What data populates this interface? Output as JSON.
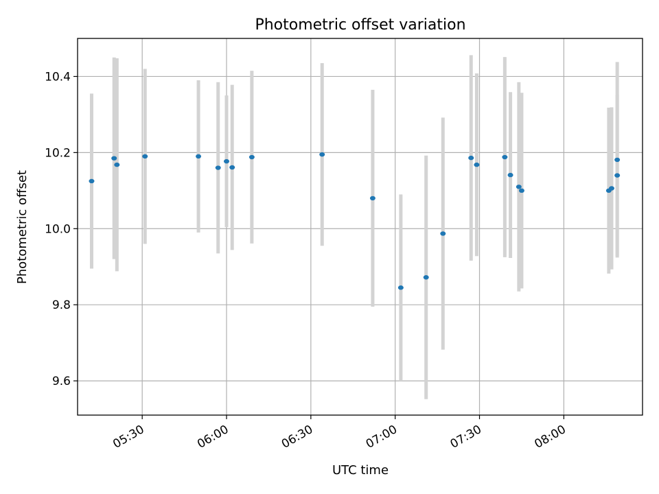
{
  "chart_data": {
    "type": "scatter",
    "title": "Photometric offset variation",
    "xlabel": "UTC time",
    "ylabel": "Photometric offset",
    "x_unit": "UTC time (HH:MM)",
    "xlim": [
      "05:07",
      "08:28"
    ],
    "ylim": [
      9.51,
      10.5
    ],
    "xticks": [
      "05:30",
      "06:00",
      "06:30",
      "07:00",
      "07:30",
      "08:00"
    ],
    "yticks": [
      9.6,
      9.8,
      10.0,
      10.2,
      10.4
    ],
    "grid": true,
    "marker_color": "#1f77b4",
    "errorbar_color": "#d3d3d3",
    "points": [
      {
        "x": "05:12",
        "y": 10.125,
        "err": 0.23
      },
      {
        "x": "05:20",
        "y": 10.185,
        "err": 0.265
      },
      {
        "x": "05:21",
        "y": 10.168,
        "err": 0.28
      },
      {
        "x": "05:31",
        "y": 10.19,
        "err": 0.23
      },
      {
        "x": "05:50",
        "y": 10.19,
        "err": 0.2
      },
      {
        "x": "05:57",
        "y": 10.16,
        "err": 0.225
      },
      {
        "x": "06:00",
        "y": 10.177,
        "err": 0.173
      },
      {
        "x": "06:02",
        "y": 10.161,
        "err": 0.217
      },
      {
        "x": "06:09",
        "y": 10.188,
        "err": 0.227
      },
      {
        "x": "06:34",
        "y": 10.195,
        "err": 0.24
      },
      {
        "x": "06:52",
        "y": 10.08,
        "err": 0.285
      },
      {
        "x": "07:02",
        "y": 9.845,
        "err": 0.245
      },
      {
        "x": "07:11",
        "y": 9.872,
        "err": 0.32
      },
      {
        "x": "07:17",
        "y": 9.987,
        "err": 0.305
      },
      {
        "x": "07:27",
        "y": 10.186,
        "err": 0.27
      },
      {
        "x": "07:29",
        "y": 10.168,
        "err": 0.24
      },
      {
        "x": "07:39",
        "y": 10.188,
        "err": 0.263
      },
      {
        "x": "07:41",
        "y": 10.141,
        "err": 0.218
      },
      {
        "x": "07:44",
        "y": 10.11,
        "err": 0.275
      },
      {
        "x": "07:45",
        "y": 10.1,
        "err": 0.257
      },
      {
        "x": "08:16",
        "y": 10.1,
        "err": 0.218
      },
      {
        "x": "08:17",
        "y": 10.106,
        "err": 0.213
      },
      {
        "x": "08:19",
        "y": 10.14,
        "err": 0.212
      },
      {
        "x": "08:19",
        "y": 10.181,
        "err": 0.257
      }
    ]
  }
}
